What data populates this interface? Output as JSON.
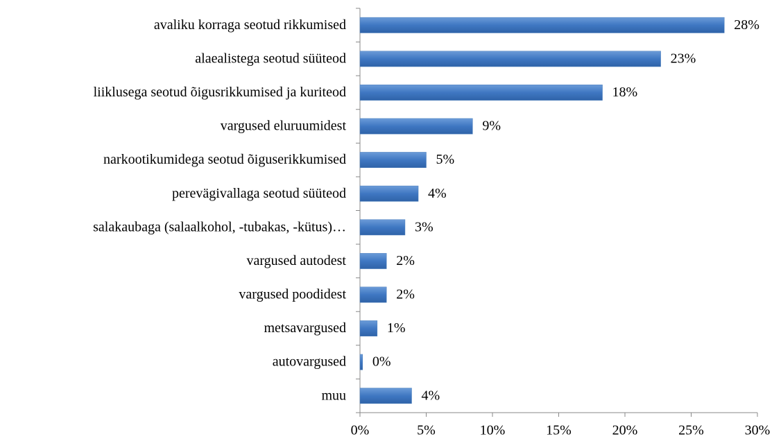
{
  "chart_data": {
    "type": "hbar",
    "categories": [
      "avaliku korraga seotud rikkumised",
      "alaealistega seotud süüteod",
      "liiklusega seotud õigusrikkumised ja kuriteod",
      "vargused eluruumidest",
      "narkootikumidega seotud õiguserikkumised",
      "perevägivallaga seotud süüteod",
      "salakaubaga (salaalkohol, -tubakas, -kütus)…",
      "vargused autodest",
      "vargused poodidest",
      "metsavargused",
      "autovargused",
      "muu"
    ],
    "values": [
      27.5,
      22.7,
      18.3,
      8.5,
      5.0,
      4.4,
      3.4,
      2.0,
      2.0,
      1.3,
      0.2,
      3.9
    ],
    "value_labels": [
      "28%",
      "23%",
      "18%",
      "9%",
      "5%",
      "4%",
      "3%",
      "2%",
      "2%",
      "1%",
      "0%",
      "4%"
    ],
    "color": "#4a7ebb",
    "xlim": [
      0,
      30
    ],
    "xticks": [
      {
        "value": 0,
        "label": "0%"
      },
      {
        "value": 5,
        "label": "5%"
      },
      {
        "value": 10,
        "label": "10%"
      },
      {
        "value": 15,
        "label": "15%"
      },
      {
        "value": 20,
        "label": "20%"
      },
      {
        "value": 25,
        "label": "25%"
      },
      {
        "value": 30,
        "label": "30%"
      }
    ],
    "grid": false
  }
}
